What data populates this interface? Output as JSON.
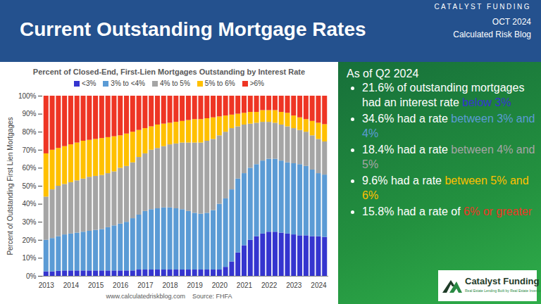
{
  "header": {
    "title": "Current Outstanding Mortgage Rates",
    "brand": "CATALYST FUNDING",
    "date": "OCT 2024",
    "credit": "Calculated Risk Blog"
  },
  "chart_data": {
    "type": "bar",
    "stacked": true,
    "title": "Percent of Closed-End, First-Lien Mortgages Outstanding by Interest Rate",
    "y_label": "Percent of Outstanding First Lien Mortgages",
    "source": "www.calculatedriskblog.com",
    "source_note": "Source: FHFA",
    "legend": "top",
    "grid": false,
    "categories": [
      "2013",
      null,
      null,
      null,
      "2014",
      null,
      null,
      null,
      "2015",
      null,
      null,
      null,
      "2016",
      null,
      null,
      null,
      "2017",
      null,
      null,
      null,
      "2018",
      null,
      null,
      null,
      "2019",
      null,
      null,
      null,
      "2020",
      null,
      null,
      null,
      "2021",
      null,
      null,
      null,
      "2022",
      null,
      null,
      null,
      "2023",
      null,
      null,
      null,
      "2024",
      null
    ],
    "ylim": [
      0,
      100
    ],
    "yticks": [
      {
        "value": 0,
        "label": "0%"
      },
      {
        "value": 10,
        "label": "10%"
      },
      {
        "value": 20,
        "label": "20%"
      },
      {
        "value": 30,
        "label": "30%"
      },
      {
        "value": 40,
        "label": "40%"
      },
      {
        "value": 50,
        "label": "50%"
      },
      {
        "value": 60,
        "label": "60%"
      },
      {
        "value": 70,
        "label": "70%"
      },
      {
        "value": 80,
        "label": "80%"
      },
      {
        "value": 90,
        "label": "90%"
      },
      {
        "value": 100,
        "label": "100%"
      }
    ],
    "series": [
      {
        "name": "<3%",
        "color": "#3535cf",
        "values": [
          2.5,
          2.5,
          2.8,
          3,
          3,
          3,
          3,
          3,
          3,
          3,
          3,
          3,
          3,
          3,
          3,
          3.5,
          3.5,
          3.5,
          3.5,
          3.5,
          3.5,
          3.5,
          3.5,
          3.5,
          3.5,
          3.5,
          3.5,
          3.5,
          3.5,
          5,
          8,
          13,
          17,
          20,
          22,
          23.5,
          24.5,
          24.5,
          24,
          23.5,
          23,
          22.5,
          22.5,
          22,
          22,
          21.6
        ]
      },
      {
        "name": "3% to <4%",
        "color": "#5b9bd5",
        "values": [
          17.5,
          18.5,
          19.2,
          20,
          20.5,
          21,
          21.5,
          22,
          22.5,
          23,
          24,
          25,
          26,
          27,
          29,
          30.5,
          32.5,
          33.5,
          34,
          34.5,
          34.5,
          34,
          33.5,
          32.5,
          31.5,
          31,
          31.5,
          33,
          36.5,
          38,
          40,
          41,
          40,
          40,
          40,
          40.5,
          40.5,
          40.5,
          40,
          39.5,
          39.5,
          39.5,
          38.5,
          37,
          35,
          34.6
        ]
      },
      {
        "name": "4% to 5%",
        "color": "#a5a5a5",
        "values": [
          24,
          27,
          28,
          28,
          28.5,
          29,
          29.5,
          30,
          30,
          30,
          30,
          30,
          31,
          31,
          31,
          32,
          32,
          33,
          33.5,
          34,
          35,
          36,
          37,
          38,
          39,
          39.5,
          40,
          39.5,
          38,
          37,
          34,
          29,
          27,
          24.5,
          23,
          21.5,
          20.5,
          20,
          20,
          20,
          19.5,
          19,
          19,
          19,
          19,
          18.4
        ]
      },
      {
        "name": "5% to 6%",
        "color": "#ffc000",
        "values": [
          24,
          22,
          21,
          21,
          21,
          21,
          21,
          20.5,
          20.5,
          20.5,
          20,
          19.5,
          18,
          18,
          17,
          15,
          14,
          13,
          13,
          12.5,
          12,
          12,
          12,
          12.5,
          13,
          13,
          12.5,
          12,
          10.5,
          9,
          7.5,
          7,
          6.5,
          6.5,
          6,
          6.5,
          6.5,
          7,
          7,
          7.5,
          7,
          7,
          7,
          8,
          9,
          9.6
        ]
      },
      {
        "name": ">6%",
        "color": "#ee3524",
        "values": [
          32,
          30,
          29,
          28,
          27,
          26,
          25,
          24.5,
          24,
          23.5,
          23,
          22.5,
          22,
          21,
          20,
          19,
          18,
          17,
          16,
          15.5,
          15,
          14.5,
          14,
          13.5,
          13,
          13,
          12.5,
          12,
          11.5,
          11,
          10.5,
          10,
          9.5,
          9,
          9,
          8,
          8,
          8,
          9,
          9.5,
          11,
          12,
          13,
          14,
          15,
          15.8
        ]
      }
    ]
  },
  "panel": {
    "heading": "As of Q2 2024",
    "bullets": [
      {
        "text": "21.6% of outstanding mortgages had an interest rate ",
        "highlight": "below 3%"
      },
      {
        "text": "34.6% had a rate ",
        "highlight": "between 3% and 4%"
      },
      {
        "text": "18.4% had a rate ",
        "highlight": "between 4% and 5%"
      },
      {
        "text": "9.6% had a rate ",
        "highlight": "between 5% and 6%"
      },
      {
        "text": "15.8% had a rate of ",
        "highlight": "6% or greater"
      }
    ]
  },
  "logo": {
    "name": "Catalyst Funding",
    "tagline": "Real Estate Lending Built by Real Estate Investors"
  }
}
